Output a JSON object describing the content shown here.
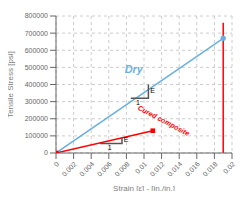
{
  "chart_data": {
    "type": "line",
    "title": "",
    "xlabel": "Strain [ε] - [in./in.]",
    "ylabel": "Tensile Stress [psi]",
    "xlim": [
      0,
      0.02
    ],
    "ylim": [
      0,
      800000
    ],
    "xticks": [
      0,
      0.002,
      0.004,
      0.006,
      0.008,
      0.01,
      0.012,
      0.014,
      0.016,
      0.018,
      0.02
    ],
    "yticks": [
      0,
      100000,
      200000,
      300000,
      400000,
      500000,
      600000,
      700000,
      800000
    ],
    "grid": true,
    "series": [
      {
        "type": "line",
        "color": "#6AB0E0",
        "x": [
          0,
          0.019
        ],
        "values": [
          0,
          670000
        ]
      },
      {
        "type": "scatter",
        "marker": "circle",
        "color": "#6AB0E0",
        "x": [
          0.019
        ],
        "values": [
          670000
        ]
      },
      {
        "type": "line",
        "color": "#FF0000",
        "x": [
          0.0,
          0.011
        ],
        "values": [
          0,
          130000
        ]
      },
      {
        "type": "line",
        "color": "#FF0000",
        "x": [
          0.019,
          0.019
        ],
        "values": [
          0,
          760000
        ]
      },
      {
        "type": "scatter",
        "marker": "square",
        "color": "#FF0000",
        "x": [
          0.0
        ],
        "values": [
          0
        ]
      },
      {
        "type": "scatter",
        "marker": "square",
        "color": "#FF0000",
        "x": [
          0.011
        ],
        "values": [
          130000
        ]
      },
      {
        "type": "line",
        "color": "#555555",
        "x": [
          0.0085,
          0.0105,
          0.0105
        ],
        "values": [
          320000,
          320000,
          400000
        ]
      },
      {
        "type": "line",
        "color": "#555555",
        "x": [
          0.005,
          0.0075,
          0.0075
        ],
        "values": [
          55000,
          55000,
          90000
        ]
      }
    ],
    "annotations": [
      {
        "text": "E",
        "x": 0.0107,
        "y": 360000,
        "color": "#000000"
      },
      {
        "text": "1",
        "x": 0.0093,
        "y": 310000,
        "color": "#000000"
      },
      {
        "text": "E",
        "x": 0.0077,
        "y": 73000,
        "color": "#000000"
      },
      {
        "text": "1",
        "x": 0.0061,
        "y": 48000,
        "color": "#000000"
      },
      {
        "text": "Dry",
        "x": 0.0078,
        "y": 470000,
        "color": "#6AB0E0"
      },
      {
        "text": "Cured composite",
        "x": 0.0095,
        "y": 280000,
        "color": "#FF0000"
      }
    ]
  }
}
